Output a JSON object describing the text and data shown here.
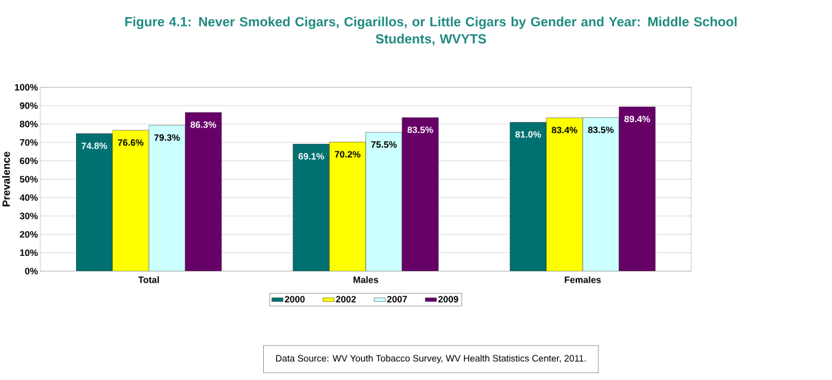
{
  "chart_data": {
    "type": "bar",
    "title": "Figure 4.1:  Never Smoked Cigars, Cigarillos, or Little Cigars by Gender and Year:  Middle School Students, WVYTS",
    "ylabel": "Prevalence",
    "categories": [
      "Total",
      "Males",
      "Females"
    ],
    "series": [
      {
        "name": "2000",
        "color": "#007070",
        "values": [
          74.8,
          69.1,
          81.0
        ],
        "value_labels": [
          "74.8%",
          "69.1%",
          "81.0%"
        ]
      },
      {
        "name": "2002",
        "color": "#ffff00",
        "values": [
          76.6,
          70.2,
          83.4
        ],
        "value_labels": [
          "76.6%",
          "70.2%",
          "83.4%"
        ]
      },
      {
        "name": "2007",
        "color": "#ccffff",
        "values": [
          79.3,
          75.5,
          83.5
        ],
        "value_labels": [
          "79.3%",
          "75.5%",
          "83.5%"
        ]
      },
      {
        "name": "2009",
        "color": "#660066",
        "values": [
          86.3,
          83.5,
          89.4
        ],
        "value_labels": [
          "86.3%",
          "83.5%",
          "89.4%"
        ]
      }
    ],
    "ylim": [
      0,
      100
    ],
    "yticks": [
      {
        "value": 0,
        "label": "0%"
      },
      {
        "value": 10,
        "label": "10%"
      },
      {
        "value": 20,
        "label": "20%"
      },
      {
        "value": 30,
        "label": "30%"
      },
      {
        "value": 40,
        "label": "40%"
      },
      {
        "value": 50,
        "label": "50%"
      },
      {
        "value": 60,
        "label": "60%"
      },
      {
        "value": 70,
        "label": "70%"
      },
      {
        "value": 80,
        "label": "80%"
      },
      {
        "value": 90,
        "label": "90%"
      },
      {
        "value": 100,
        "label": "100%"
      }
    ],
    "grid": "y",
    "legend": "bottom",
    "annotations": [
      "Data Source:  WV Youth Tobacco Survey, WV Health Statistics Center, 2011."
    ]
  }
}
